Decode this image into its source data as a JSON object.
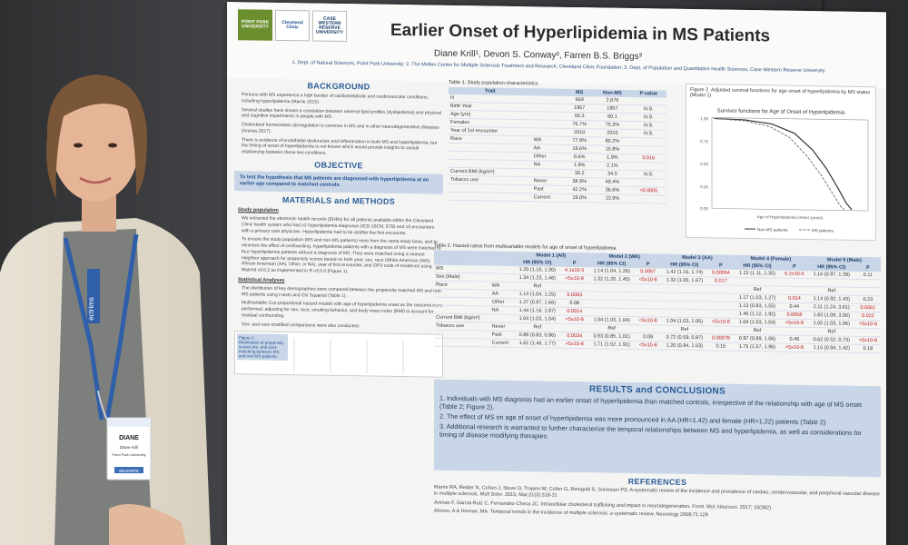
{
  "poster": {
    "logos": [
      "POINT PARK UNIVERSITY",
      "Cleveland Clinic",
      "CASE WESTERN RESERVE UNIVERSITY"
    ],
    "title": "Earlier Onset of Hyperlipidemia in MS Patients",
    "authors": "Diane Krill¹, Devon S. Conway², Farren B.S. Briggs³",
    "affiliations": "1. Dept. of Natural Sciences, Point Park University; 2. The Mellen Center for Multiple Sclerosis Treatment and Research, Cleveland Clinic Foundation; 3. Dept. of Population and Quantitative Health Sciences, Case Western Reserve University",
    "background": {
      "heading": "BACKGROUND",
      "bullets": [
        "Persons with MS experience a high burden of cardiometabolic and cardiovascular conditions, including hyperlipidemia (Marrie 2015).",
        "Several studies have shown a correlation between adverse lipid profiles (dyslipidemia) and physical and cognitive impairments in people with MS.",
        "Cholesterol homeostasis dysregulation is common in MS and in other neurodegenerative diseases (Arenas 2017).",
        "There is evidence of endothelial dysfunction and inflammation in both MS and hyperlipidemia, but the timing of onset of hyperlipidemia is not known which would provide insights to causal relationship between these two conditions."
      ]
    },
    "objective": {
      "heading": "OBJECTIVE",
      "text": "To test the hypothesis that MS patients are diagnosed with hyperlipidemia at an earlier age compared to matched controls."
    },
    "methods": {
      "heading": "MATERIALS and METHODS",
      "study_population_label": "Study population",
      "study_bullets": [
        "We extracted the electronic health records (EHRs) for all patients available within the Cleveland Clinic health system who had ≥2 hyperlipidemia diagnoses (ICD-10CM, E78) and ≥3 encounters with a primary care physician. Hyperlipidemia had to be at/after the first encounter.",
        "To ensure the study population (MS and non-MS patients) were from the same study base, and to minimize the effect of confounding, hyperlipidemia patients with a diagnosis of MS were matched to four hyperlipidemia patients without a diagnosis of MS. They were matched using a nearest neighbor approach for propensity scores based on birth year, sex, race (White American (WA), African American (AA), Other, or NA), year of first encounter, and ZIP3 code of residence using Matchit v3.0.2 as implemented in R v3.5.0 (Figure 1)."
      ],
      "stats_label": "Statistical Analyses",
      "stats_bullets": [
        "The distribution of key demographics were compared between the propensity matched MS and non-MS patients using t-tests and Chi Squared (Table 1).",
        "Multivariable Cox-proportional hazard models with age of hyperlipidemia onset as the outcome were performed, adjusting for sex, race, smoking behavior, and body mass index (BMI) to account for residual confounding.",
        "Sex- and race-stratified comparisons were also conducted."
      ],
      "figure1_caption": [
        "Figure 1.",
        "Distribution of propensity scores pre- and post-matching between MS and non-MS patients."
      ]
    },
    "table1": {
      "caption": "Table 1: Study population characteristics",
      "headers": [
        "Trait",
        "",
        "MS",
        "Non-MS",
        "P-value"
      ],
      "rows": [
        [
          "N",
          "",
          "669",
          "2,676",
          ""
        ],
        [
          "Birth Year",
          "",
          "1957",
          "1957",
          "N.S."
        ],
        [
          "Age (yrs)",
          "",
          "60.3",
          "60.1",
          "N.S."
        ],
        [
          "Females",
          "",
          "76.7%",
          "75.3%",
          "N.S."
        ],
        [
          "Year of 1st encounter",
          "",
          "2010",
          "2010",
          "N.S."
        ],
        [
          "Race",
          "WA",
          "77.9%",
          "80.2%",
          ""
        ],
        [
          "",
          "AA",
          "19.6%",
          "15.8%",
          ""
        ],
        [
          "",
          "Other",
          "0.6%",
          "1.9%",
          "0.016"
        ],
        [
          "",
          "NA",
          "1.9%",
          "2.1%",
          ""
        ],
        [
          "Current BMI (kg/m²)",
          "",
          "30.2",
          "34.5",
          "N.S."
        ],
        [
          "Tobacco use",
          "Never",
          "38.9%",
          "49.4%",
          ""
        ],
        [
          "",
          "Past",
          "42.2%",
          "36.6%",
          "<0.0005"
        ],
        [
          "",
          "Current",
          "19.0%",
          "13.9%",
          ""
        ]
      ]
    },
    "figure2": {
      "caption": "Figure 2. Adjusted survival functions for age onset of hyperlipidemia by MS status (Model 1)",
      "plot_title": "Survivor functions for Age of Onset of Hyperlipidemia",
      "xlabel": "Age of Hyperlipidemia Onset (years)",
      "legend": [
        "Non-MS patients",
        "MS patients"
      ],
      "y_ticks": [
        "0.00",
        "0.25",
        "0.50",
        "0.75",
        "1.00"
      ]
    },
    "table2": {
      "caption": "Table 2. Hazard ratios from multivariable models for age of onset of hyperlipidemia",
      "models": [
        "Model 1 (All)",
        "Model 2 (WA)",
        "Model 3 (AA)",
        "Model 4 (Female)",
        "Model 5 (Male)"
      ],
      "subheaders": [
        "HR (95% CI)",
        "P"
      ],
      "rows": [
        [
          "MS",
          "",
          "1.20 (1.10, 1.30)",
          "4.1x10-5",
          "1.14 (1.04, 1.26)",
          "0.0067",
          "1.42 (1.16, 1.74)",
          "0.00064",
          "1.22 (1.11, 1.35)",
          "6.2x10-5",
          "1.16 (0.97, 1.39)",
          "0.11"
        ],
        [
          "Sex (Male)",
          "",
          "1.34 (1.23, 1.46)",
          "<5x10-8",
          "1.32 (1.20, 1.45)",
          "<5x10-8",
          "1.32 (1.05, 1.67)",
          "0.017",
          "",
          "",
          "",
          ""
        ],
        [
          "Race",
          "WA",
          "Ref",
          "",
          "",
          "",
          "",
          "",
          "Ref",
          "",
          "Ref",
          ""
        ],
        [
          "",
          "AA",
          "1.14 (1.04, 1.25)",
          "0.0063",
          "",
          "",
          "",
          "",
          "1.17 (1.03, 1.27)",
          "0.014",
          "1.14 (0.92, 1.43)",
          "0.23"
        ],
        [
          "",
          "Other",
          "1.27 (0.97, 1.66)",
          "0.08",
          "",
          "",
          "",
          "",
          "1.13 (0.83, 1.55)",
          "0.44",
          "2.11 (1.24, 3.61)",
          "0.0061"
        ],
        [
          "",
          "NA",
          "1.44 (1.16, 1.87)",
          "0.0014",
          "",
          "",
          "",
          "",
          "1.46 (1.12, 1.92)",
          "0.0058",
          "1.83 (1.09, 3.06)",
          "0.022"
        ],
        [
          "Current BMI (kg/m²)",
          "",
          "1.04 (1.03, 1.04)",
          "<5x10-8",
          "1.04 (1.03, 1.04)",
          "<5x10-8",
          "1.04 (1.03, 1.05)",
          "<5x10-8",
          "1.04 (1.03, 1.04)",
          "<5x10-8",
          "1.05 (1.03, 1.06)",
          "<5x10-8"
        ],
        [
          "Tobacco use",
          "Never",
          "Ref",
          "",
          "Ref",
          "",
          "Ref",
          "",
          "Ref",
          "",
          "Ref",
          ""
        ],
        [
          "",
          "Past",
          "0.89 (0.83, 0.96)",
          "0.0034",
          "0.93 (0.85, 1.01)",
          "0.09",
          "0.72 (0.59, 0.87)",
          "0.00078",
          "0.97 (0.89, 1.06)",
          "0.49",
          "0.62 (0.52, 0.73)",
          "<5x10-8"
        ],
        [
          "",
          "Current",
          "1.61 (1.46, 1.77)",
          "<5x10-8",
          "1.71 (1.52, 1.91)",
          "<5x10-8",
          "1.20 (0.94, 1.53)",
          "0.15",
          "1.75 (1.57, 1.96)",
          "<5x10-8",
          "1.15 (0.94, 1.42)",
          "0.18"
        ]
      ]
    },
    "results": {
      "heading": "RESULTS and CONCLUSIONS",
      "items": [
        "1. Individuals with MS diagnosis had an earlier onset of hyperlipidemia than matched controls, irrespective of the relationship with age of MS onset (Table 2; Figure 2).",
        "2. The effect of MS on age of onset of hyperlipidemia was more pronounced in AA (HR=1.42) and female (HR=1.22) patients (Table 2)",
        "3. Additional research is warranted to further characterize the temporal relationships between MS and hyperlipidemia, as well as considerations for timing of disease modifying therapies."
      ]
    },
    "references": {
      "heading": "REFERENCES",
      "items": [
        "Marrie RA, Reider N, Cohen J, Stuve O, Trojano M, Cutter G, Reingold S, Sorensen PS. A systematic review of the incidence and prevalence of cardiac, cerebrovascular, and peripheral vascular disease in multiple sclerosis. Mult Scler. 2015; Mar;21(3):318-31",
        "Arenas F, Garcia-Ruiz C, Fernandez-Checa JC. Intracellular cholesterol trafficking and impact in neurodegeneration. Front. Mol. Neurosci. 2017; 10(382).",
        "Alonso, A & Hernan, MA. Temporal trends in the incidence of multiple sclerosis: a systematic review. Neurology 2008;71:129"
      ]
    }
  },
  "badge": {
    "name": "DIANE",
    "full_name": "Diane Krill",
    "institution": "Point Park University",
    "type": "DELEGATE",
    "lanyard_text": "ectrims"
  },
  "colors": {
    "accent_blue": "#2a5b96",
    "band_blue": "#c9d6e8",
    "red_text": "#c0141b",
    "wall": "#3b3c3e"
  }
}
